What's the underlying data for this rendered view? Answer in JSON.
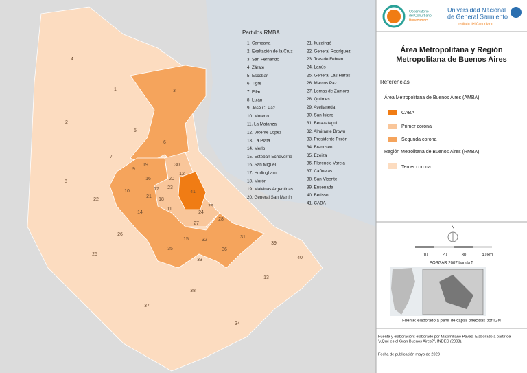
{
  "header": {
    "observatorio_lines": [
      "Observatorio",
      "del Conurbano",
      "Bonaerense"
    ],
    "university_lines": [
      "Universidad Nacional",
      "de General Sarmiento"
    ],
    "institute": "Instituto del Conurbano"
  },
  "title_lines": [
    "Área Metropolitana y Región",
    "Metropolitana de Buenos Aires"
  ],
  "legend": {
    "heading": "Referencias",
    "amba": "Área Metropolitana de Buenos Aires (AMBA)",
    "caba": "CABA",
    "primer": "Primer corona",
    "segunda": "Segunda corona",
    "rmba": "Región Metrolitana de Buenos Aires (RMBA)",
    "tercer": "Tercer corona"
  },
  "partidos_title": "Partidos RMBA",
  "partidos": [
    "1. Campana",
    "2. Exaltación de la Cruz",
    "3. San Fernando",
    "4. Zárate",
    "5. Escobar",
    "6. Tigre",
    "7. Pilar",
    "8. Luján",
    "9. José C. Paz",
    "10. Moreno",
    "11. La Matanza",
    "12. Vicente López",
    "13. La Plata",
    "14. Merlo",
    "15. Esteban Echeverría",
    "16. San Miguel",
    "17. Hurlingham",
    "18. Morón",
    "19. Malvinas Argentinas",
    "20. General San Martín",
    "21. Ituzaingó",
    "22. General Rodríguez",
    "23. Tres de Febrero",
    "24. Lanús",
    "25. General Las Heras",
    "26. Marcos Paz",
    "27. Lomas de Zamora",
    "28. Quilmes",
    "29. Avellaneda",
    "30. San Isidro",
    "31. Berazategui",
    "32. Almirante Brown",
    "33. Presidente Perón",
    "34. Brandsen",
    "35. Ezeiza",
    "36. Florencio Varela",
    "37. Cañuelas",
    "38. San Vicente",
    "39. Ensenada",
    "40. Berisso",
    "41. CABA"
  ],
  "map_labels": [
    1,
    2,
    3,
    4,
    5,
    6,
    7,
    8,
    9,
    10,
    11,
    12,
    13,
    14,
    15,
    16,
    17,
    18,
    19,
    20,
    21,
    22,
    23,
    24,
    25,
    26,
    27,
    28,
    29,
    30,
    31,
    32,
    33,
    34,
    35,
    36,
    37,
    38,
    39,
    40,
    41
  ],
  "scale": {
    "north": "N",
    "labels": [
      "10",
      "20",
      "30",
      "40 km"
    ],
    "projection": "POSGAR 2007 banda 5"
  },
  "inset_source": "Fuente: elaborado a partir de capas ofrecidas por IGN",
  "footer_lines": [
    "Fuente y elaboración: elaborado por Maximiliano Pavez. Elaborado a partir de",
    "\"¿Qué es el Gran Buenos Aires?\", INDEC (2003)."
  ],
  "date": "Fecha de publicación mayo de 2023"
}
